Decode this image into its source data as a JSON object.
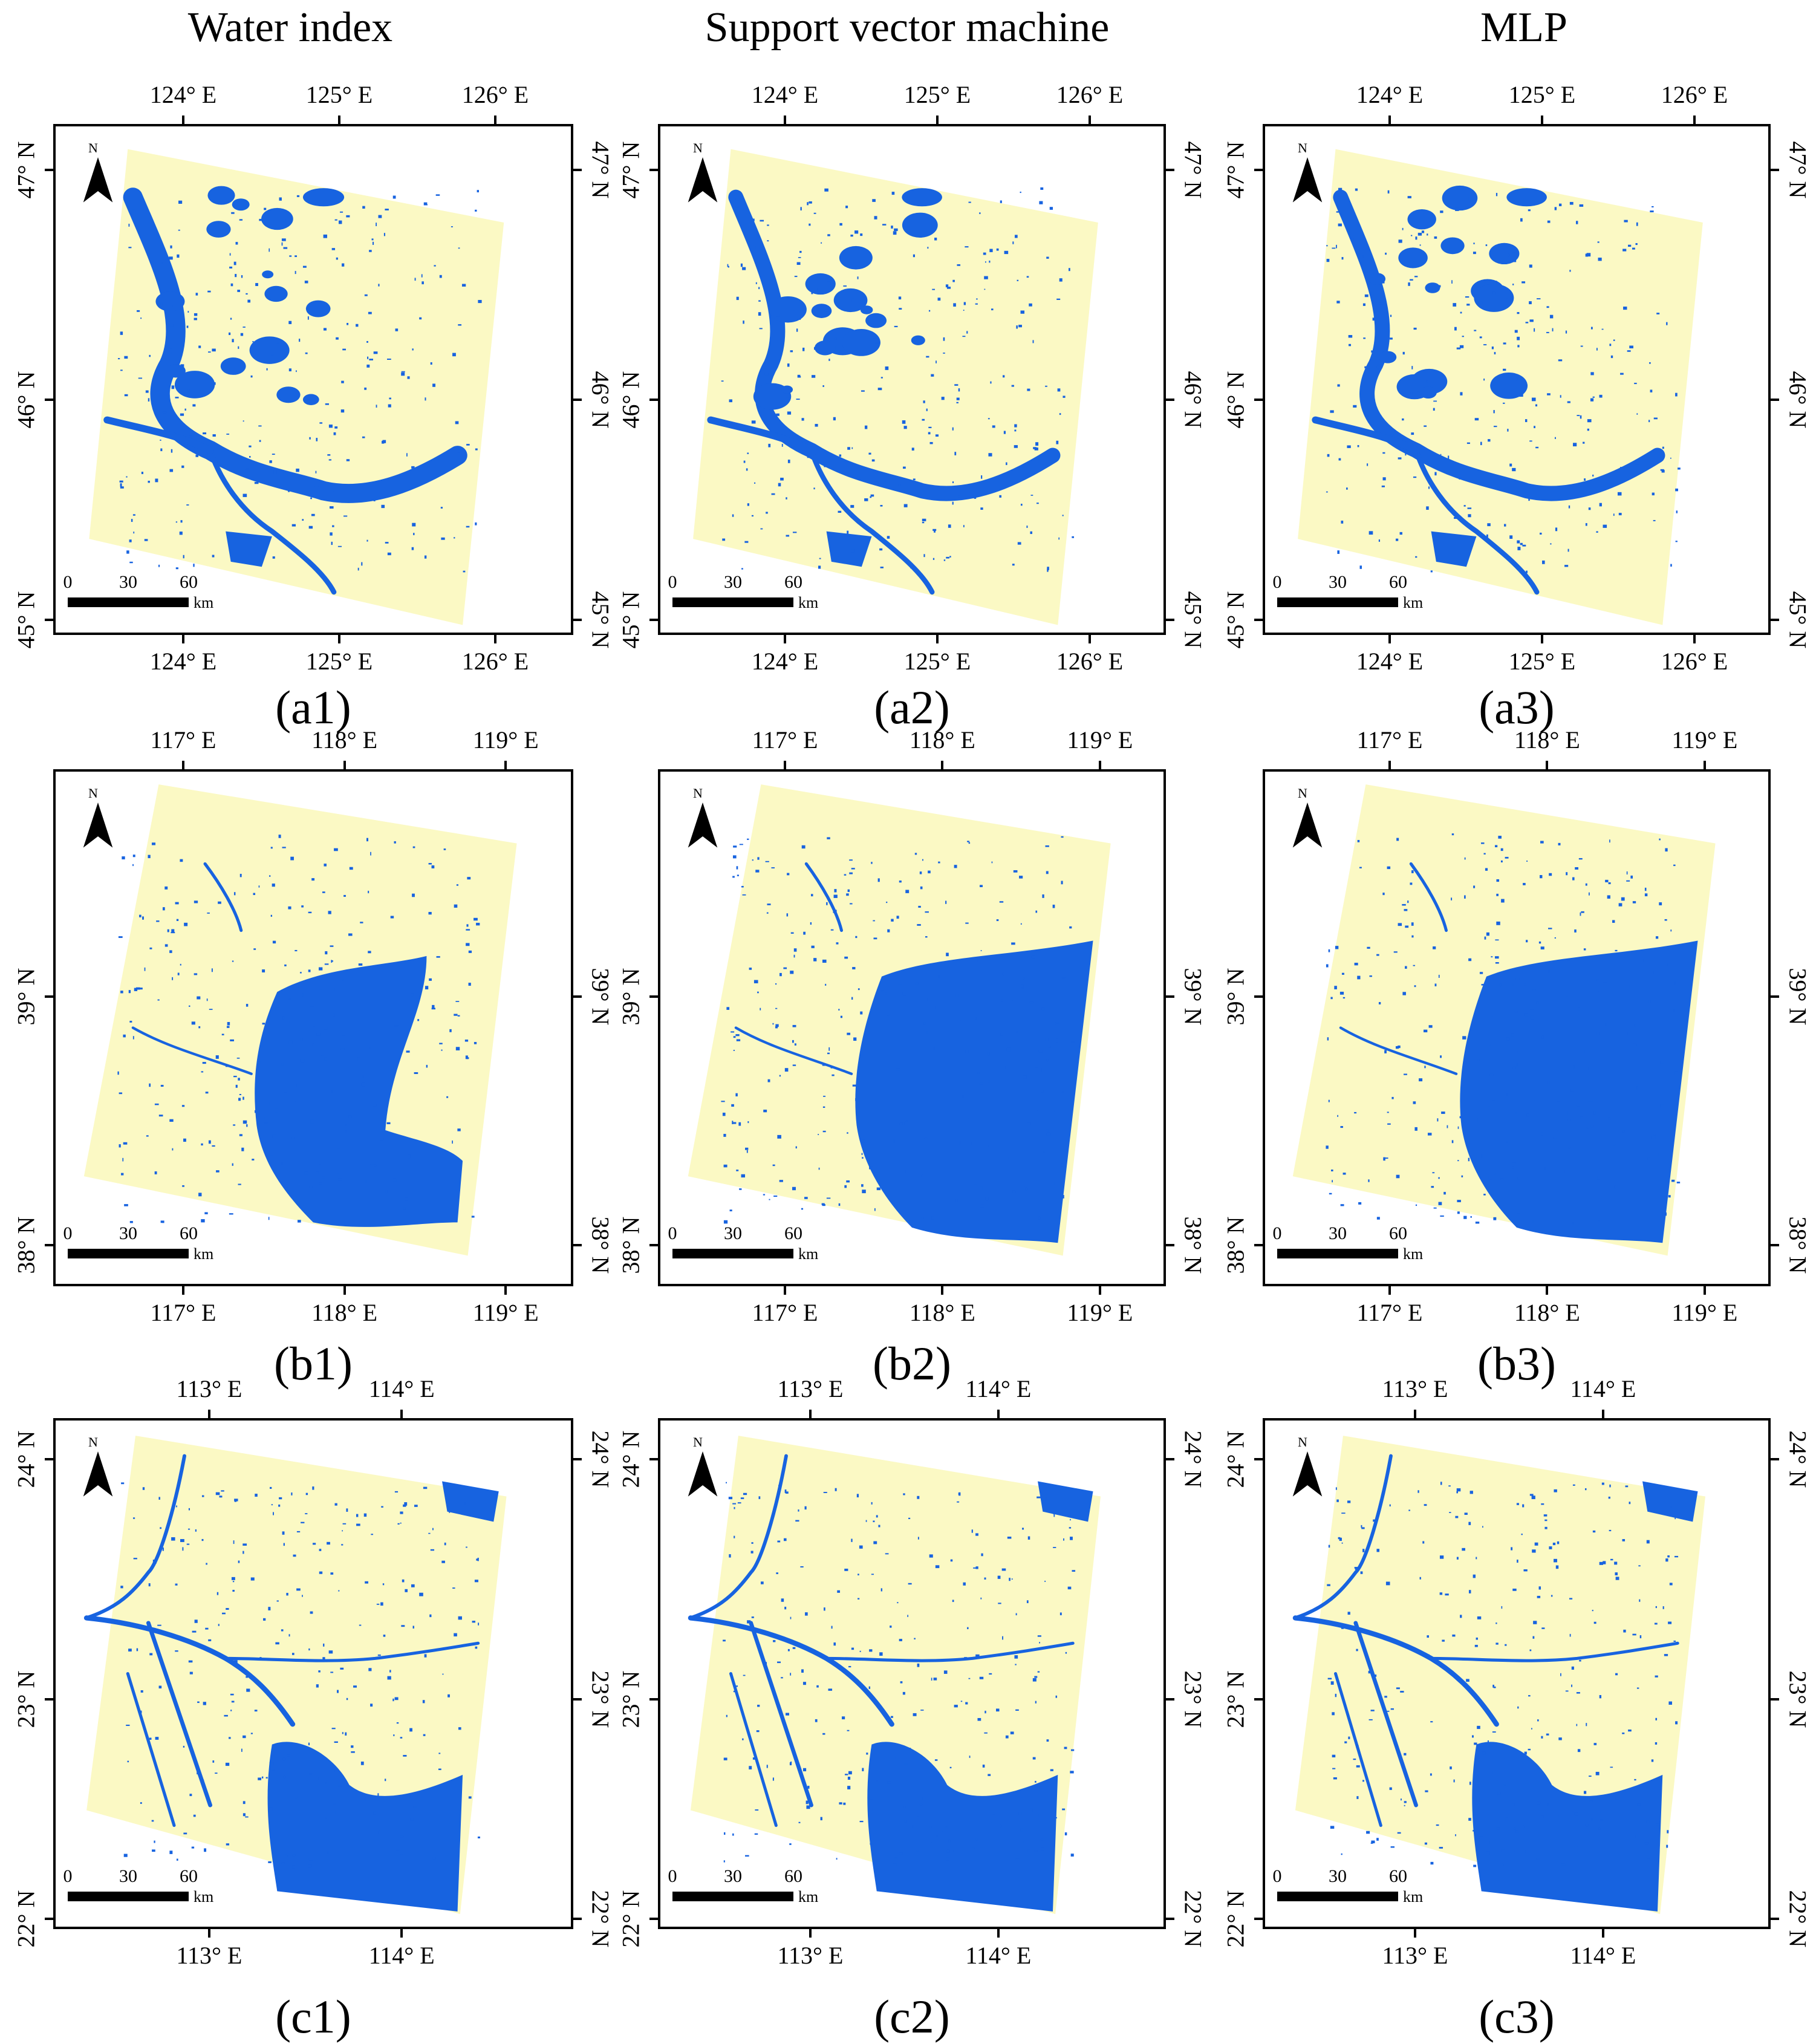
{
  "columns": [
    {
      "title": "Water index"
    },
    {
      "title": "Support vector machine"
    },
    {
      "title": "MLP"
    }
  ],
  "rows": [
    {
      "id": "a",
      "lon_ticks": [
        "124° E",
        "125° E",
        "126° E"
      ],
      "lat_ticks": [
        "47° N",
        "46° N",
        "45° N"
      ],
      "panel_labels": [
        "(a1)",
        "(a2)",
        "(a3)"
      ],
      "scene": "songnen"
    },
    {
      "id": "b",
      "lon_ticks": [
        "117° E",
        "118° E",
        "119° E"
      ],
      "lat_ticks": [
        "39° N",
        "38° N"
      ],
      "panel_labels": [
        "(b1)",
        "(b2)",
        "(b3)"
      ],
      "scene": "bohai"
    },
    {
      "id": "c",
      "lon_ticks": [
        "113° E",
        "114° E"
      ],
      "lat_ticks": [
        "24° N",
        "23° N",
        "22° N"
      ],
      "panel_labels": [
        "(c1)",
        "(c2)",
        "(c3)"
      ],
      "scene": "pearl"
    }
  ],
  "map_common": {
    "north_label": "N",
    "scale_labels": [
      "0",
      "30",
      "60"
    ],
    "scale_unit": "km",
    "land_color": "#FBF9C4",
    "water_color": "#1763E0"
  }
}
